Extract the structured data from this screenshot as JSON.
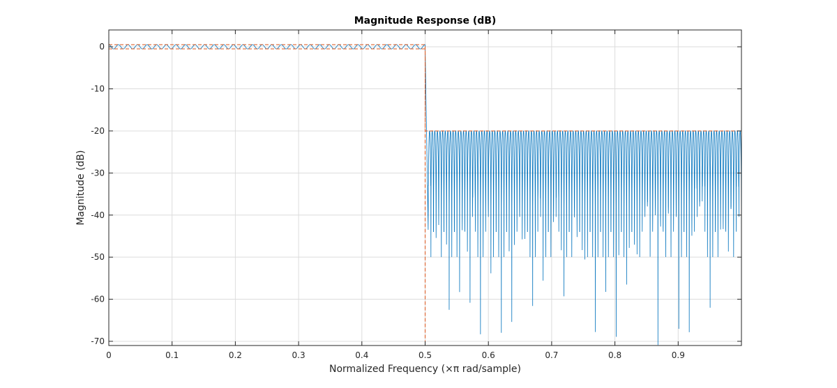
{
  "chart_data": {
    "type": "line",
    "title": "Magnitude Response (dB)",
    "xlabel": "Normalized Frequency (×π rad/sample)",
    "ylabel": "Magnitude (dB)",
    "xlim": [
      0,
      1
    ],
    "ylim": [
      -71,
      4
    ],
    "xticks": [
      0,
      0.1,
      0.2,
      0.3,
      0.4,
      0.5,
      0.6,
      0.7,
      0.8,
      0.9
    ],
    "xtick_labels": [
      "0",
      "0.1",
      "0.2",
      "0.3",
      "0.4",
      "0.5",
      "0.6",
      "0.7",
      "0.8",
      "0.9"
    ],
    "yticks": [
      0,
      -10,
      -20,
      -30,
      -40,
      -50,
      -60,
      -70
    ],
    "ytick_labels": [
      "0",
      "-10",
      "-20",
      "-30",
      "-40",
      "-50",
      "-60",
      "-70"
    ],
    "grid": true,
    "colors": {
      "response": "#0072BD",
      "mask": "#D95319",
      "grid": "#dcdcdc",
      "axes": "#262626"
    },
    "series": [
      {
        "role": "response",
        "style": "solid",
        "passband_edge": 0.5,
        "stopband_edge": 0.505,
        "passband_ripple_db": 0.5,
        "passband_ripple_cycles": 33,
        "stopband_peak_db": -20,
        "stopband_lobes": 120,
        "stopband_null_range_db": [
          -71,
          -33
        ]
      },
      {
        "role": "mask",
        "style": "dashed",
        "x": [
          0,
          0.5,
          0.5,
          1
        ],
        "upper": [
          0.5,
          0.5,
          -20,
          -20
        ],
        "lower": [
          -0.5,
          -0.5,
          -71,
          -71
        ]
      }
    ]
  }
}
